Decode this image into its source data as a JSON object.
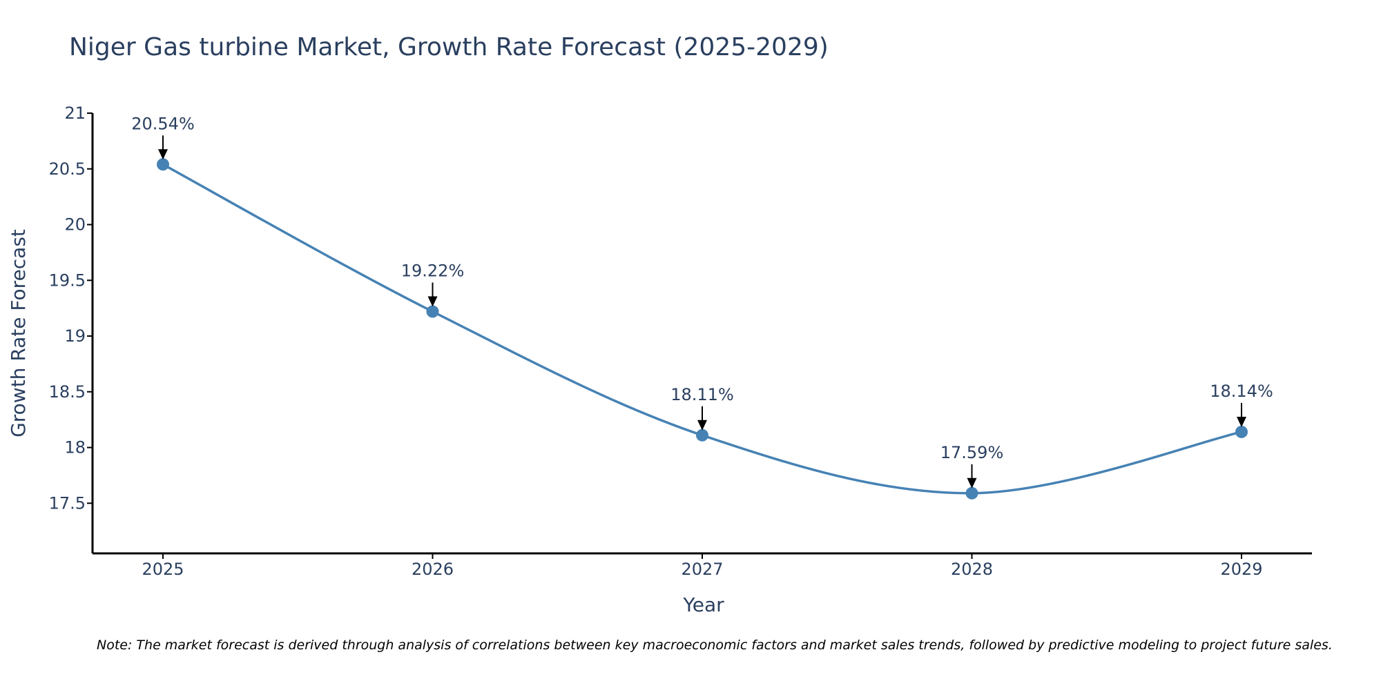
{
  "chart_data": {
    "type": "line",
    "title": "Niger Gas turbine Market, Growth Rate Forecast (2025-2029)",
    "xlabel": "Year",
    "ylabel": "Growth Rate Forecast",
    "categories": [
      "2025",
      "2026",
      "2027",
      "2028",
      "2029"
    ],
    "values": [
      20.54,
      19.22,
      18.11,
      17.59,
      18.14
    ],
    "labels": [
      "20.54%",
      "19.22%",
      "18.11%",
      "17.59%",
      "18.14%"
    ],
    "yticks": [
      "17.5",
      "18",
      "18.5",
      "19",
      "19.5",
      "20",
      "20.5",
      "21"
    ],
    "ytick_values": [
      17.5,
      18,
      18.5,
      19,
      19.5,
      20,
      20.5,
      21
    ],
    "ylim": [
      17.05,
      21
    ],
    "line_shape": "spline",
    "grid": false,
    "line_color": "#4682b4",
    "note": "Note: The market forecast is derived through analysis of correlations between key macroeconomic factors and market sales trends, followed by predictive modeling to project future sales."
  }
}
